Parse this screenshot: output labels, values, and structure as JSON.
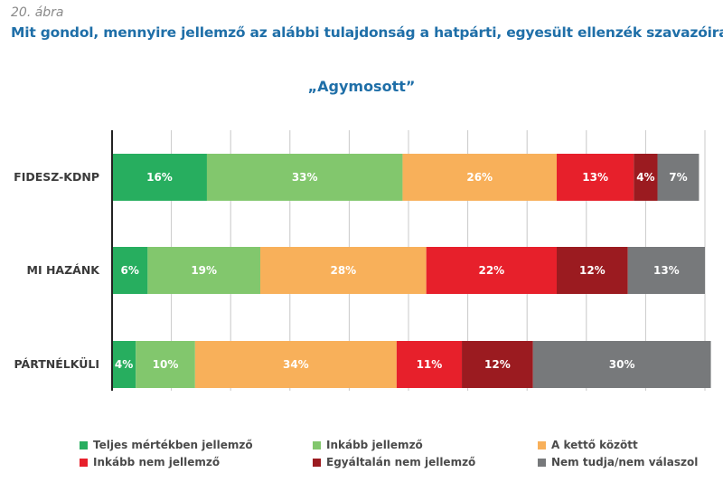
{
  "figure_label": "20. ábra",
  "chart_data": {
    "type": "bar",
    "orientation": "horizontal",
    "stacked": true,
    "title": "Mit gondol, mennyire jellemző az alábbi tulajdonság a hatpárti, egyesült ellenzék szavazóira?",
    "subtitle": "„Agymosott”",
    "categories": [
      "FIDESZ-KDNP",
      "MI HAZÁNK",
      "PÁRTNÉLKÜLI"
    ],
    "series": [
      {
        "name": "Teljes mértékben jellemző",
        "color": "#27ae5f",
        "values": [
          16,
          6,
          4
        ]
      },
      {
        "name": "Inkább jellemző",
        "color": "#82c76d",
        "values": [
          33,
          19,
          10
        ]
      },
      {
        "name": "A kettő között",
        "color": "#f8b05a",
        "values": [
          26,
          28,
          34
        ]
      },
      {
        "name": "Inkább nem jellemző",
        "color": "#e7202b",
        "values": [
          13,
          22,
          11
        ]
      },
      {
        "name": "Egyáltalán nem jellemző",
        "color": "#9b1b20",
        "values": [
          4,
          12,
          12
        ]
      },
      {
        "name": "Nem tudja/nem válaszol",
        "color": "#77797b",
        "values": [
          7,
          13,
          30
        ]
      }
    ],
    "value_suffix": "%",
    "xlim": [
      0,
      100
    ],
    "grid": true,
    "legend_position": "bottom"
  }
}
